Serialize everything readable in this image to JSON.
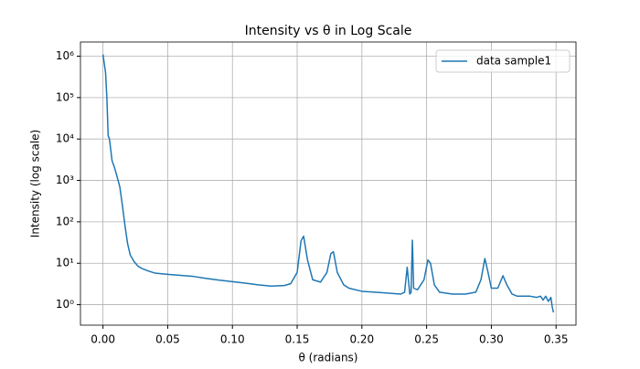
{
  "chart_data": {
    "type": "line",
    "title": "Intensity vs θ in Log Scale",
    "x_label": "θ (radians)",
    "y_label": "Intensity (log scale)",
    "log_y": true,
    "grid": true,
    "legend_position": "upper-right",
    "xlim": [
      -0.0174,
      0.3654
    ],
    "ylim": [
      0.32,
      2200000
    ],
    "xticks": [
      {
        "value": 0,
        "label": "0.00"
      },
      {
        "value": 0.05,
        "label": "0.05"
      },
      {
        "value": 0.1,
        "label": "0.10"
      },
      {
        "value": 0.15,
        "label": "0.15"
      },
      {
        "value": 0.2,
        "label": "0.20"
      },
      {
        "value": 0.25,
        "label": "0.25"
      },
      {
        "value": 0.3,
        "label": "0.30"
      },
      {
        "value": 0.35,
        "label": "0.35"
      }
    ],
    "yticks": [
      {
        "value": 1,
        "label": "10⁰"
      },
      {
        "value": 10,
        "label": "10¹"
      },
      {
        "value": 100,
        "label": "10²"
      },
      {
        "value": 1000,
        "label": "10³"
      },
      {
        "value": 10000,
        "label": "10⁴"
      },
      {
        "value": 100000,
        "label": "10⁵"
      },
      {
        "value": 1000000,
        "label": "10⁶"
      }
    ],
    "x": [
      0,
      0.002,
      0.003,
      0.004,
      0.005,
      0.007,
      0.009,
      0.011,
      0.013,
      0.015,
      0.017,
      0.019,
      0.021,
      0.024,
      0.027,
      0.03,
      0.035,
      0.04,
      0.05,
      0.06,
      0.07,
      0.08,
      0.09,
      0.1,
      0.11,
      0.12,
      0.13,
      0.14,
      0.145,
      0.15,
      0.153,
      0.155,
      0.158,
      0.162,
      0.168,
      0.173,
      0.176,
      0.178,
      0.181,
      0.186,
      0.19,
      0.2,
      0.21,
      0.22,
      0.23,
      0.233,
      0.235,
      0.237,
      0.238,
      0.239,
      0.24,
      0.243,
      0.248,
      0.251,
      0.253,
      0.256,
      0.26,
      0.27,
      0.28,
      0.288,
      0.292,
      0.295,
      0.297,
      0.3,
      0.305,
      0.309,
      0.312,
      0.316,
      0.32,
      0.33,
      0.335,
      0.338,
      0.34,
      0.342,
      0.344,
      0.346,
      0.347,
      0.348
    ],
    "series": [
      {
        "name": "data sample1",
        "color": "#1f77b4",
        "values": [
          1100000,
          400000,
          100000,
          12000,
          10000,
          3000,
          2000,
          1200,
          700,
          250,
          80,
          30,
          16,
          11,
          8.5,
          7.5,
          6.5,
          5.8,
          5.4,
          5.1,
          4.8,
          4.3,
          3.9,
          3.6,
          3.3,
          3.0,
          2.8,
          2.9,
          3.2,
          6,
          35,
          45,
          12,
          4,
          3.5,
          6,
          17,
          19,
          6,
          3,
          2.5,
          2.1,
          2,
          1.9,
          1.8,
          2,
          8,
          1.8,
          2,
          36,
          2.5,
          2.3,
          4,
          12,
          10,
          3,
          2,
          1.8,
          1.8,
          2,
          4,
          13,
          7,
          2.5,
          2.5,
          5,
          3,
          1.8,
          1.6,
          1.6,
          1.5,
          1.6,
          1.3,
          1.6,
          1.2,
          1.5,
          0.9,
          0.65
        ]
      }
    ]
  }
}
